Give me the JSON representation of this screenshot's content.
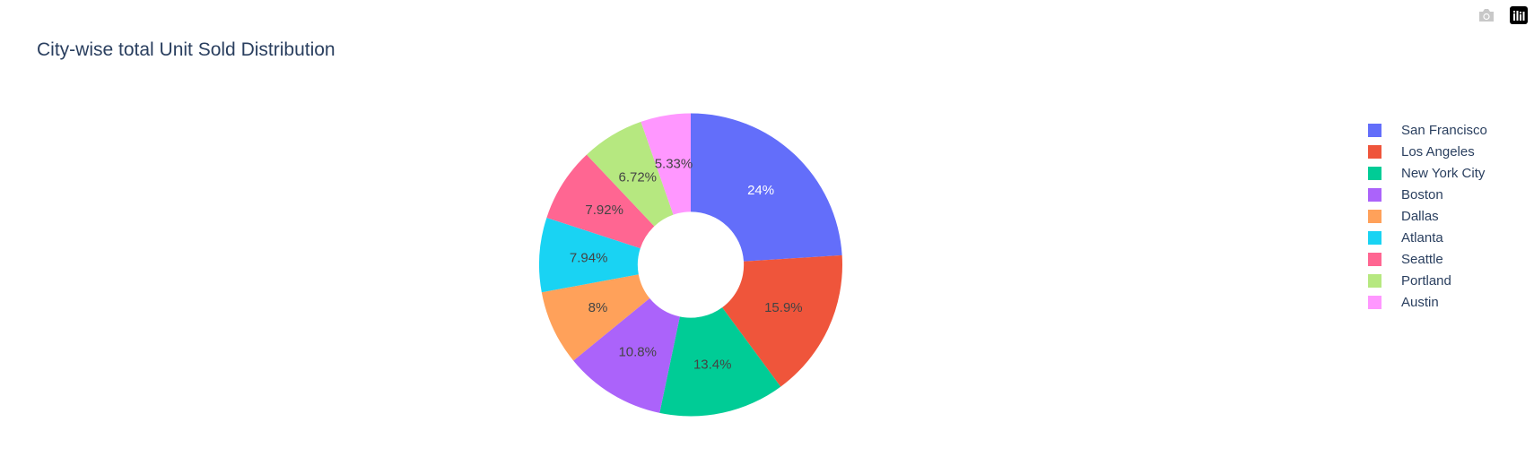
{
  "modebar": {
    "camera_icon": "camera-icon",
    "plotly_logo_icon": "plotly-logo-icon"
  },
  "chart_data": {
    "type": "pie",
    "hole": 0.35,
    "title": "City-wise total Unit Sold Distribution",
    "labels": [
      "San Francisco",
      "Los Angeles",
      "New York City",
      "Boston",
      "Dallas",
      "Atlanta",
      "Seattle",
      "Portland",
      "Austin"
    ],
    "values": [
      24,
      15.9,
      13.4,
      10.8,
      8,
      7.94,
      7.92,
      6.72,
      5.33
    ],
    "text_labels": [
      "24%",
      "15.9%",
      "13.4%",
      "10.8%",
      "8%",
      "7.94%",
      "7.92%",
      "6.72%",
      "5.33%"
    ],
    "colors": [
      "#636efa",
      "#EF553B",
      "#00cc96",
      "#ab63fa",
      "#FFA15A",
      "#19d3f3",
      "#FF6692",
      "#B6E880",
      "#FF97FF"
    ],
    "label_colors": [
      "#ffffff",
      "#444444",
      "#444444",
      "#444444",
      "#444444",
      "#444444",
      "#444444",
      "#444444",
      "#444444"
    ],
    "legend_position": "right"
  }
}
